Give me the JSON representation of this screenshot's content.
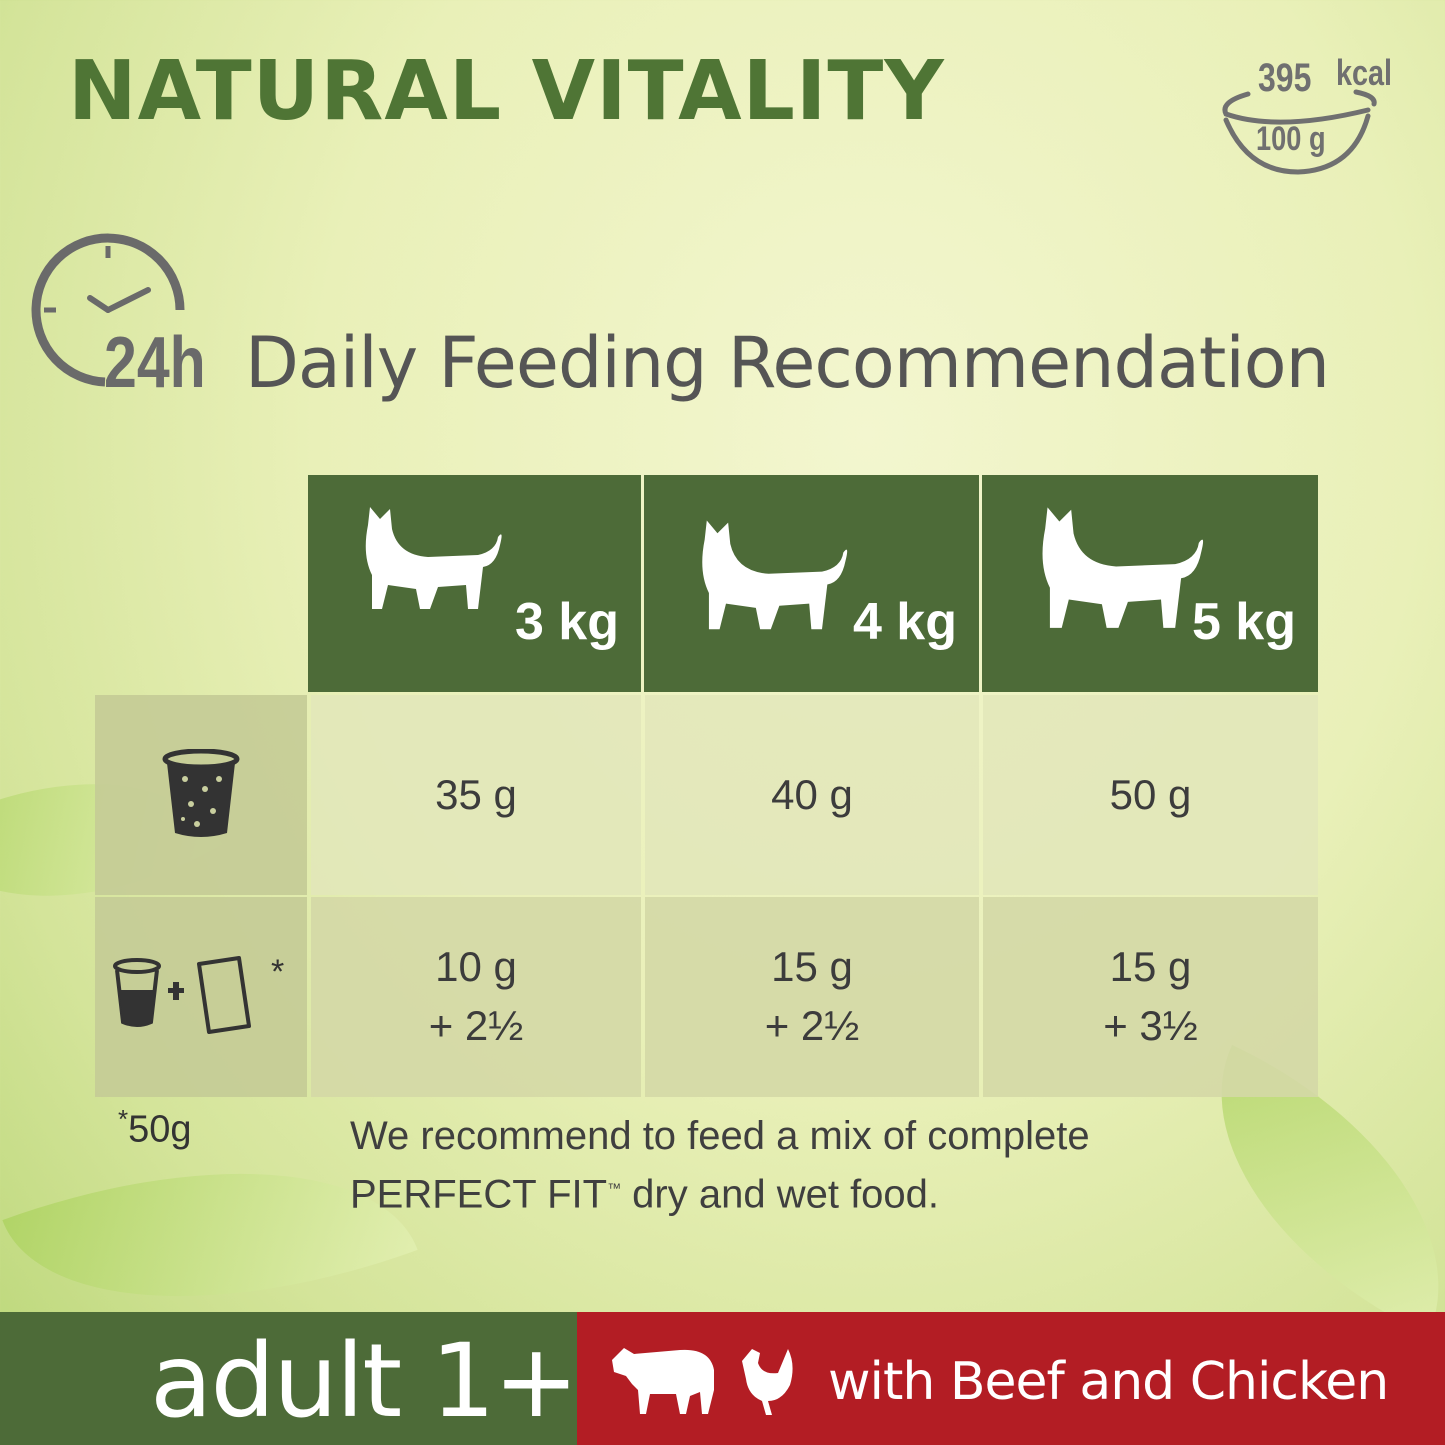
{
  "brand_title": "NATURAL VITALITY",
  "energy": {
    "value": "395",
    "unit": "kcal",
    "per": "100 g"
  },
  "section": {
    "badge": "24h",
    "title": "Daily Feeding Recommendation"
  },
  "table": {
    "columns": [
      "3 kg",
      "4 kg",
      "5 kg"
    ],
    "rows": [
      {
        "label_icon": "dry-food-cup-icon",
        "values": [
          "35 g",
          "40 g",
          "50 g"
        ]
      },
      {
        "label_icon": "dry-cup-plus-wet-pouch-icon",
        "label_suffix": "*",
        "values": [
          [
            "10 g",
            "+ 2½"
          ],
          [
            "15 g",
            "+ 2½"
          ],
          [
            "15 g",
            "+ 3½"
          ]
        ]
      }
    ]
  },
  "footnote": {
    "mark": "*",
    "text": "50g"
  },
  "recommendation": {
    "line1": "We recommend to feed a mix of complete",
    "line2_a": "PERFECT FIT",
    "tm": "™",
    "line2_b": " dry and wet food."
  },
  "footer": {
    "age": "adult 1+",
    "flavour": "with Beef and Chicken",
    "left_color": "#4d6b38",
    "right_color": "#b31d24"
  }
}
